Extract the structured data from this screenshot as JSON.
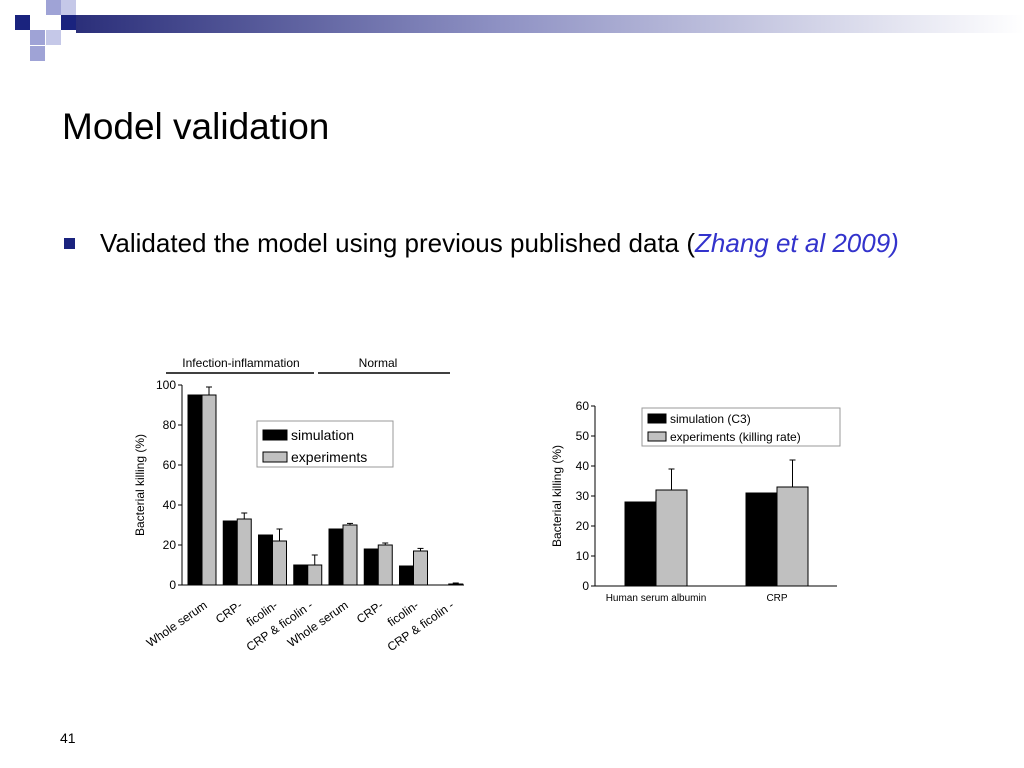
{
  "slide": {
    "title": "Model validation",
    "bullet_text": "Validated the model using previous published data (",
    "bullet_ref": "Zhang et al 2009)",
    "page_number": "41"
  },
  "colors": {
    "accent": "#1a237e",
    "simulation": "#000000",
    "experiments": "#c0c0c0",
    "reference": "#3333cc"
  },
  "chart_data": [
    {
      "type": "bar",
      "group_labels": [
        "Infection-inflammation",
        "Normal"
      ],
      "categories": [
        "Whole serum",
        "CRP-",
        "ficolin-",
        "CRP & ficolin -",
        "Whole serum",
        "CRP-",
        "ficolin-",
        "CRP & ficolin -"
      ],
      "series": [
        {
          "name": "simulation",
          "values": [
            95,
            32,
            25,
            10,
            28,
            18,
            9.5,
            0
          ],
          "errors": [
            0,
            0,
            0,
            0,
            0,
            0,
            0,
            0
          ]
        },
        {
          "name": "experiments",
          "values": [
            95,
            33,
            22,
            10,
            30,
            20,
            17,
            0.5
          ],
          "errors": [
            4,
            3,
            6,
            5,
            0.8,
            1,
            1.3,
            0.5
          ]
        }
      ],
      "ylabel": "Bacterial killing (%)",
      "ylim": [
        0,
        100
      ],
      "yticks": [
        0,
        20,
        40,
        60,
        80,
        100
      ],
      "legend": "top-right",
      "grid": false
    },
    {
      "type": "bar",
      "categories": [
        "Human serum albumin",
        "CRP"
      ],
      "series": [
        {
          "name": "simulation (C3)",
          "values": [
            28,
            31
          ],
          "errors": [
            0,
            0
          ]
        },
        {
          "name": "experiments (killing rate)",
          "values": [
            32,
            33
          ],
          "errors": [
            7,
            9
          ]
        }
      ],
      "ylabel": "Bacterial killing (%)",
      "ylim": [
        0,
        60
      ],
      "yticks": [
        0,
        10,
        20,
        30,
        40,
        50,
        60
      ],
      "legend": "top",
      "grid": false
    }
  ]
}
